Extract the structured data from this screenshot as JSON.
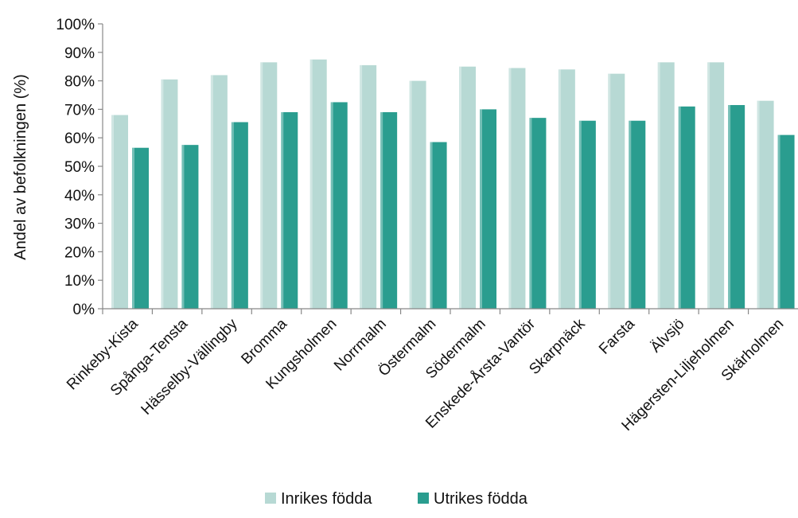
{
  "chart_data": {
    "type": "bar",
    "title": "",
    "xlabel": "",
    "ylabel": "Andel av befolkningen (%)",
    "ylim": [
      0,
      100
    ],
    "yticks": [
      "0%",
      "10%",
      "20%",
      "30%",
      "40%",
      "50%",
      "60%",
      "70%",
      "80%",
      "90%",
      "100%"
    ],
    "grid": false,
    "legend_position": "bottom",
    "categories": [
      "Rinkeby-Kista",
      "Spånga-Tensta",
      "Hässelby-Vällingby",
      "Bromma",
      "Kungsholmen",
      "Norrmalm",
      "Östermalm",
      "Södermalm",
      "Enskede-Årsta-Vantör",
      "Skarpnäck",
      "Farsta",
      "Älvsjö",
      "Hägersten-Liljeholmen",
      "Skärholmen"
    ],
    "series": [
      {
        "name": "Inrikes födda",
        "color": "#b7d9d4",
        "values": [
          68,
          80.5,
          82,
          86.5,
          87.5,
          85.5,
          80,
          85,
          84.5,
          84,
          82.5,
          86.5,
          86.5,
          73
        ]
      },
      {
        "name": "Utrikes födda",
        "color": "#2a9d8f",
        "values": [
          56.5,
          57.5,
          65.5,
          69,
          72.5,
          69,
          58.5,
          70,
          67,
          66,
          66,
          71,
          71.5,
          61
        ]
      }
    ]
  }
}
